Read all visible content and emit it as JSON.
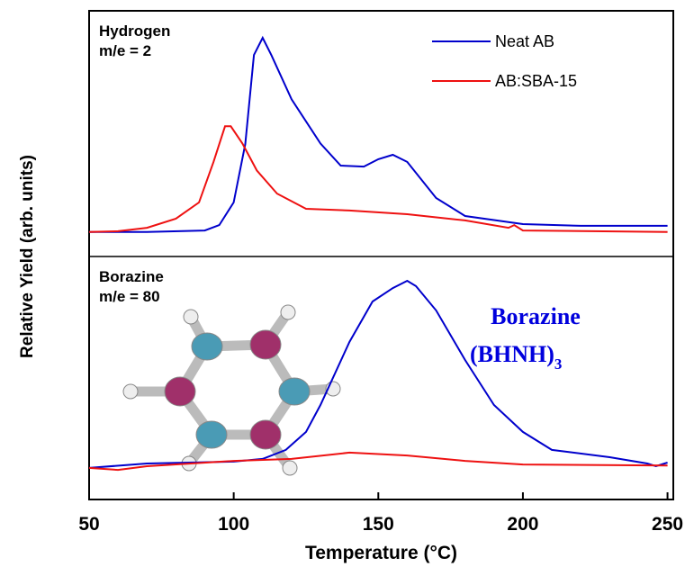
{
  "chart_data": [
    {
      "type": "line",
      "annotations": [
        "Hydrogen",
        "m/e = 2"
      ],
      "ylabel": "Relative Yield (arb. units)",
      "xlim": [
        50,
        252
      ],
      "ylim": [
        0,
        100
      ],
      "legend": "top-right",
      "series": [
        {
          "name": "Neat AB",
          "color": "#0000cc",
          "x": [
            50,
            70,
            90,
            95,
            100,
            104,
            107,
            110,
            113,
            120,
            130,
            137,
            145,
            150,
            155,
            160,
            170,
            180,
            200,
            220,
            250
          ],
          "values": [
            10,
            10,
            10.6,
            12.8,
            22,
            45.8,
            82,
            89,
            82,
            64,
            46,
            37,
            36.6,
            39.6,
            41.4,
            38.5,
            23.8,
            16.5,
            13.2,
            12.5,
            12.5
          ]
        },
        {
          "name": "AB:SBA-15",
          "color": "#ee1111",
          "x": [
            50,
            60,
            70,
            80,
            88,
            93,
            97,
            99,
            103,
            108,
            115,
            125,
            140,
            160,
            180,
            195,
            197,
            200,
            250
          ],
          "values": [
            10,
            10.3,
            11.7,
            15.4,
            22,
            38.5,
            53,
            53,
            46,
            35,
            25.6,
            19.4,
            18.7,
            17.2,
            14.7,
            11.7,
            12.8,
            10.6,
            10
          ]
        }
      ]
    },
    {
      "type": "line",
      "annotations": [
        "Borazine",
        "m/e = 80"
      ],
      "molecule_label": {
        "name": "Borazine",
        "formula": "(BHNH)",
        "subscript": "3"
      },
      "xlabel": "Temperature (°C)",
      "xlim": [
        50,
        252
      ],
      "ylim": [
        0,
        100
      ],
      "xticks": [
        50,
        100,
        150,
        200,
        250
      ],
      "series": [
        {
          "color": "#0000cc",
          "x": [
            50,
            70,
            100,
            110,
            118,
            125,
            130,
            140,
            148,
            155,
            160,
            163,
            170,
            180,
            190,
            200,
            210,
            230,
            243,
            246,
            250
          ],
          "values": [
            13,
            14.8,
            15.6,
            16.7,
            20.4,
            27.8,
            38.9,
            64.8,
            81.5,
            87,
            90,
            87.8,
            77.8,
            57.4,
            38.9,
            27.8,
            20.4,
            17.4,
            14.8,
            13.7,
            15.2
          ]
        },
        {
          "color": "#ee1111",
          "x": [
            50,
            60,
            70,
            100,
            120,
            140,
            160,
            180,
            200,
            250
          ],
          "values": [
            13,
            12.2,
            13.7,
            15.9,
            16.7,
            19.3,
            18.1,
            15.9,
            14.4,
            14
          ]
        }
      ]
    }
  ]
}
